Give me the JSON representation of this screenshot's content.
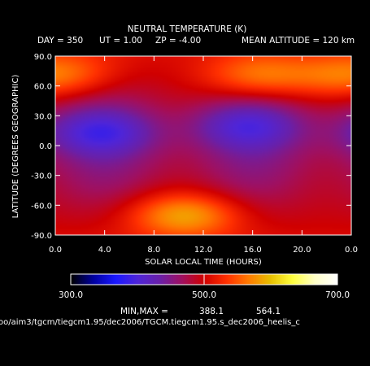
{
  "chart_data": {
    "type": "heatmap",
    "title": "NEUTRAL TEMPERATURE (K)",
    "subtitle": {
      "day": "DAY = 350",
      "ut": "UT = 1.00",
      "zp": "ZP = -4.00",
      "mean_altitude": "MEAN ALTITUDE = 120 km"
    },
    "xlabel": "SOLAR LOCAL TIME (HOURS)",
    "ylabel": "LATITUDE (DEGREES GEOGRAPHIC)",
    "x_range": [
      0,
      24
    ],
    "y_range": [
      -90,
      90
    ],
    "x_ticks": [
      "0.0",
      "4.0",
      "8.0",
      "12.0",
      "16.0",
      "20.0",
      "0.0"
    ],
    "y_ticks": [
      "90.0",
      "60.0",
      "30.0",
      "0.0",
      "-30.0",
      "-60.0",
      "-90.0"
    ],
    "colorbar": {
      "range": [
        300,
        700
      ],
      "tick_labels": [
        "300.0",
        "500.0",
        "700.0"
      ],
      "colors": [
        "#000000",
        "#0000a0",
        "#1a18ff",
        "#4f25d8",
        "#6a20a8",
        "#a01060",
        "#d00000",
        "#ff3000",
        "#ff7a00",
        "#e8c000",
        "#ffff40",
        "#ffffc8",
        "#ffffff"
      ]
    },
    "min_max": {
      "label": "MIN,MAX =",
      "min": "388.1",
      "max": "564.1"
    },
    "field_features": [
      {
        "local_time": 3.5,
        "latitude": 14,
        "temperature": 388
      },
      {
        "local_time": 15.5,
        "latitude": 20,
        "temperature": 395
      },
      {
        "local_time": 10.5,
        "latitude": -70,
        "temperature": 564
      },
      {
        "local_time": 16.5,
        "latitude": 70,
        "temperature": 545
      },
      {
        "local_time": 1.0,
        "latitude": 72,
        "temperature": 500
      },
      {
        "local_time": 23.5,
        "latitude": 70,
        "temperature": 505
      }
    ],
    "base_temperature": 460
  },
  "footer_path": "oo/aim3/tgcm/tiegcm1.95/dec2006/TGCM.tiegcm1.95.s_dec2006_heelis_c"
}
